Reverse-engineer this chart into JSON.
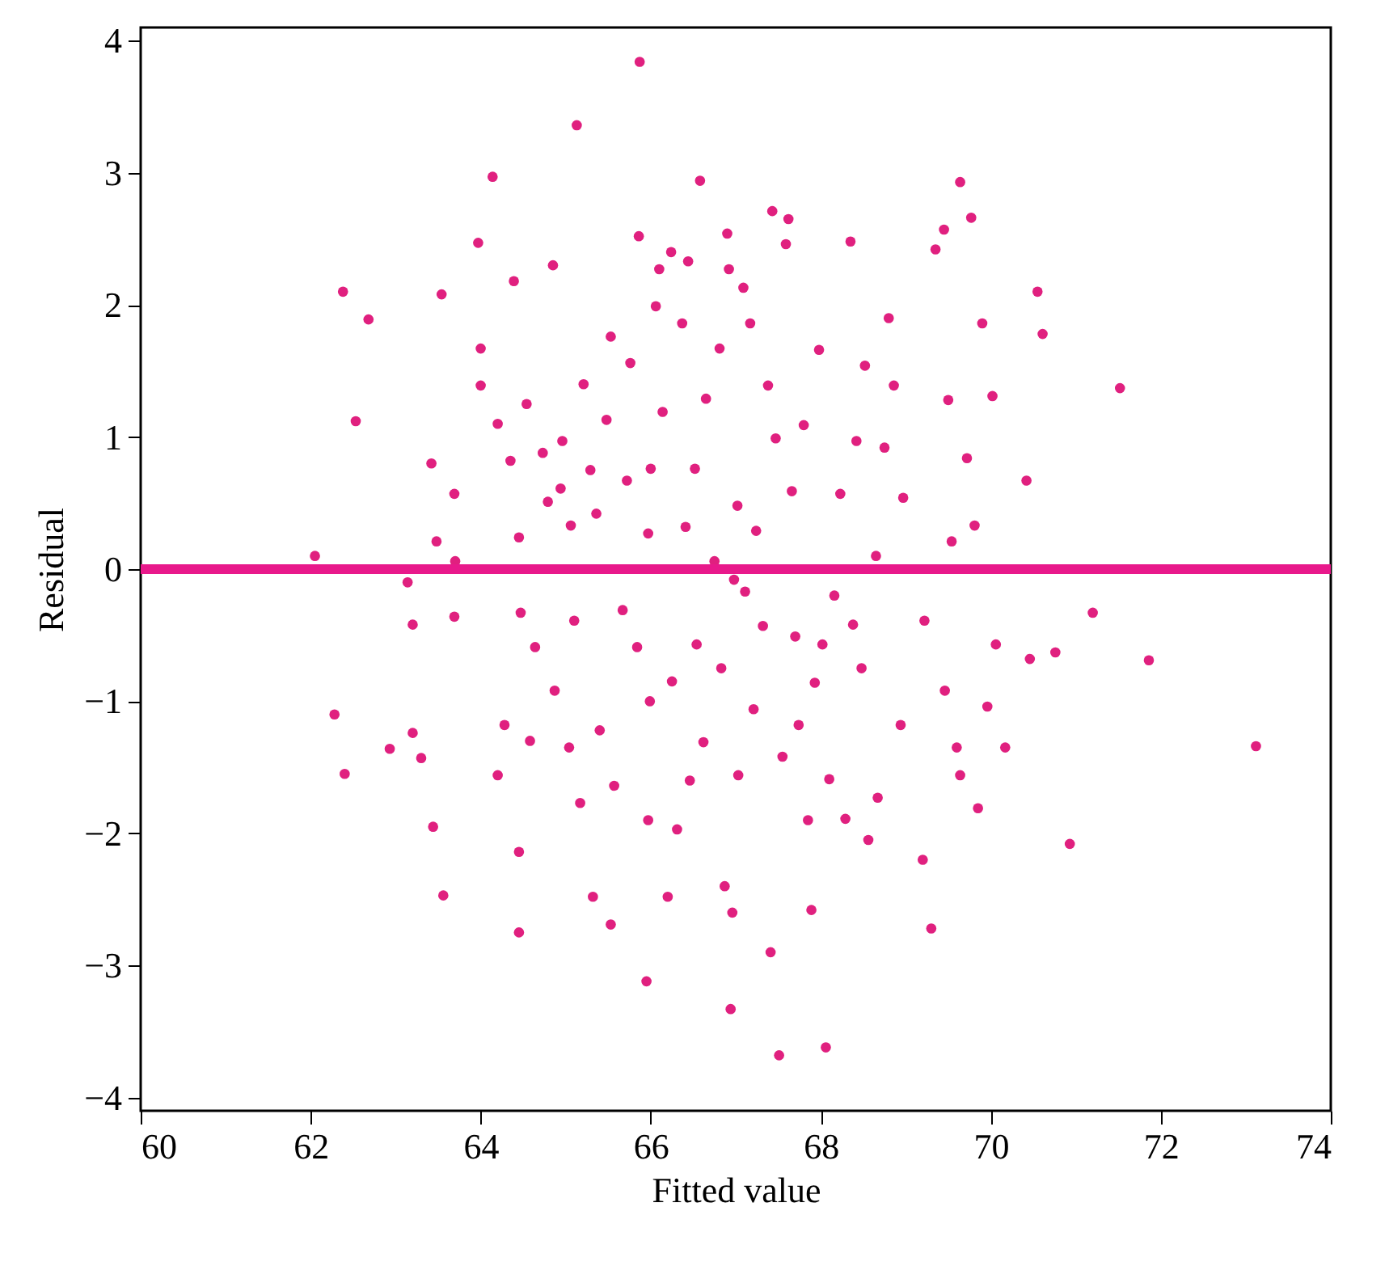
{
  "chart_data": {
    "type": "scatter",
    "xlabel": "Fitted value",
    "ylabel": "Residual",
    "xlim": [
      60,
      74
    ],
    "ylim": [
      -4.1,
      4.1
    ],
    "xticks": [
      60,
      62,
      64,
      66,
      68,
      70,
      72,
      74
    ],
    "yticks": [
      -4,
      -3,
      -2,
      -1,
      0,
      1,
      2,
      3,
      4
    ],
    "grid": false,
    "marker": "circle",
    "ref_lines": [
      {
        "axis": "y",
        "value": 0,
        "color": "#e8198b"
      }
    ],
    "series": [
      {
        "color": "#e0207f",
        "x": [
          62.05,
          62.28,
          62.38,
          62.4,
          62.53,
          62.68,
          62.93,
          63.14,
          63.2,
          63.2,
          63.3,
          63.42,
          63.44,
          63.48,
          63.54,
          63.56,
          63.69,
          63.7,
          63.69,
          63.97,
          64.0,
          64.0,
          64.14,
          64.2,
          64.2,
          64.28,
          64.35,
          64.39,
          64.45,
          64.45,
          64.45,
          64.47,
          64.54,
          64.58,
          64.64,
          64.73,
          64.79,
          64.85,
          64.87,
          64.94,
          64.96,
          65.04,
          65.06,
          65.1,
          65.13,
          65.17,
          65.21,
          65.29,
          65.32,
          65.36,
          65.4,
          65.48,
          65.53,
          65.53,
          65.57,
          65.67,
          65.72,
          65.76,
          65.84,
          65.86,
          65.87,
          65.95,
          65.97,
          65.97,
          65.99,
          66.0,
          66.06,
          66.1,
          66.14,
          66.2,
          66.24,
          66.25,
          66.31,
          66.37,
          66.41,
          66.44,
          66.46,
          66.52,
          66.54,
          66.58,
          66.62,
          66.65,
          66.75,
          66.81,
          66.83,
          66.87,
          66.9,
          66.92,
          66.94,
          66.96,
          66.98,
          67.02,
          67.03,
          67.09,
          67.11,
          67.17,
          67.21,
          67.24,
          67.32,
          67.38,
          67.41,
          67.43,
          67.47,
          67.51,
          67.55,
          67.59,
          67.62,
          67.66,
          67.7,
          67.74,
          67.8,
          67.85,
          67.89,
          67.93,
          67.98,
          68.02,
          68.06,
          68.1,
          68.16,
          68.23,
          68.29,
          68.35,
          68.38,
          68.42,
          68.48,
          68.52,
          68.56,
          68.65,
          68.67,
          68.75,
          68.8,
          68.86,
          68.94,
          68.97,
          69.2,
          69.22,
          69.3,
          69.35,
          69.45,
          69.46,
          69.5,
          69.54,
          69.6,
          69.64,
          69.64,
          69.72,
          69.77,
          69.81,
          69.85,
          69.9,
          69.96,
          70.02,
          70.06,
          70.17,
          70.42,
          70.46,
          70.55,
          70.61,
          70.76,
          70.93,
          71.2,
          71.52,
          71.86,
          73.12
        ],
        "values": [
          0.1,
          -1.1,
          2.1,
          -1.55,
          1.12,
          1.89,
          -1.36,
          -0.1,
          -0.42,
          -1.24,
          -1.43,
          0.8,
          -1.95,
          0.21,
          2.08,
          -2.47,
          0.57,
          0.06,
          -0.36,
          2.47,
          1.67,
          1.39,
          2.97,
          1.1,
          -1.56,
          -1.18,
          0.82,
          2.18,
          -2.14,
          -2.75,
          0.24,
          -0.33,
          1.25,
          -1.3,
          -0.59,
          0.88,
          0.51,
          2.3,
          -0.92,
          0.61,
          0.97,
          -1.35,
          0.33,
          -0.39,
          3.36,
          -1.77,
          1.4,
          0.75,
          -2.48,
          0.42,
          -1.22,
          1.13,
          1.76,
          -2.69,
          -1.64,
          -0.31,
          0.67,
          1.56,
          -0.59,
          2.52,
          3.84,
          -3.12,
          -1.9,
          0.27,
          -1.0,
          0.76,
          1.99,
          2.27,
          1.19,
          -2.48,
          2.4,
          -0.85,
          -1.97,
          1.86,
          0.32,
          2.33,
          -1.6,
          0.76,
          -0.57,
          2.94,
          -1.31,
          1.29,
          0.06,
          1.67,
          -0.75,
          -2.4,
          2.54,
          2.27,
          -3.33,
          -2.6,
          -0.08,
          0.48,
          -1.56,
          2.13,
          -0.17,
          1.86,
          -1.06,
          0.29,
          -0.43,
          1.39,
          -2.9,
          2.71,
          0.99,
          -3.68,
          -1.42,
          2.46,
          2.65,
          0.59,
          -0.51,
          -1.18,
          1.09,
          -1.9,
          -2.58,
          -0.86,
          1.66,
          -0.57,
          -3.62,
          -1.59,
          -0.2,
          0.57,
          -1.89,
          2.48,
          -0.42,
          0.97,
          -0.75,
          1.54,
          -2.05,
          0.1,
          -1.73,
          0.92,
          1.9,
          1.39,
          -1.18,
          0.54,
          -2.2,
          -0.39,
          -2.72,
          2.42,
          2.57,
          -0.92,
          1.28,
          0.21,
          -1.35,
          2.93,
          -1.56,
          0.84,
          2.66,
          0.33,
          -1.81,
          1.86,
          -1.04,
          1.31,
          -0.57,
          -1.35,
          0.67,
          -0.68,
          2.1,
          1.78,
          -0.63,
          -2.08,
          -0.33,
          1.37,
          -0.69,
          -1.34
        ]
      }
    ]
  }
}
